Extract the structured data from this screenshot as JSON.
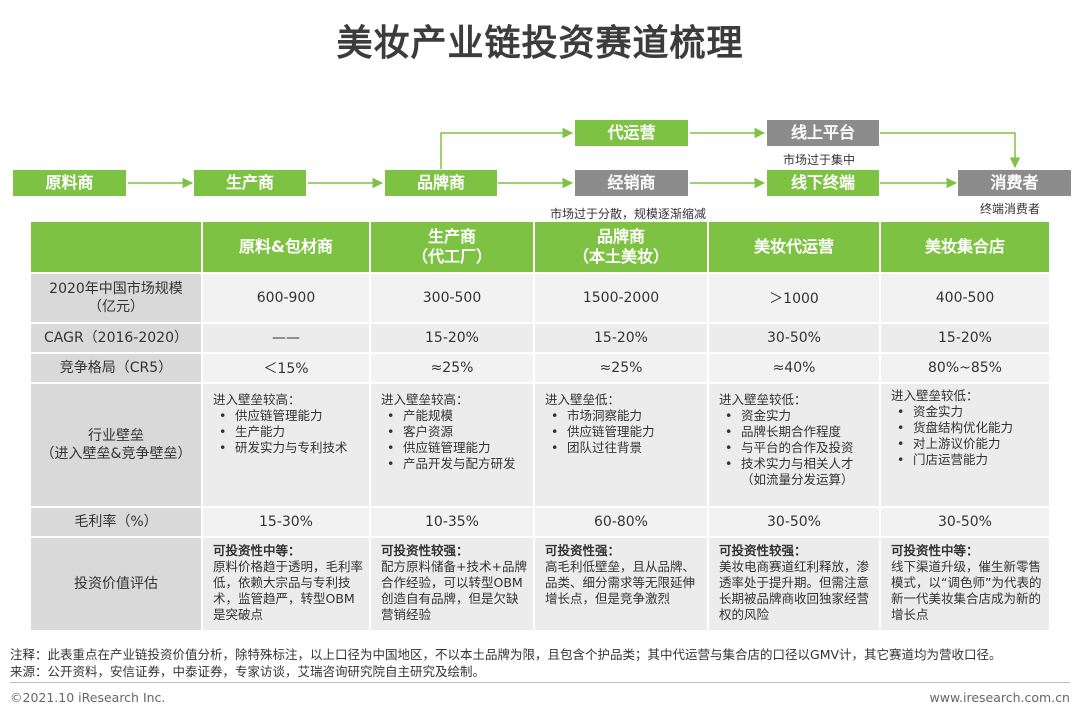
{
  "title": "美妆产业链投资赛道梳理",
  "flow": {
    "raw": "原料商",
    "manufacturer": "生产商",
    "brand": "品牌商",
    "operator": "代运营",
    "distributor": "经销商",
    "online": "线上平台",
    "offline": "线下终端",
    "consumer": "消费者",
    "online_note": "市场过于集中",
    "distributor_note": "市场过于分散，规模逐渐缩减",
    "consumer_note": "终端消费者"
  },
  "table": {
    "headers": [
      "原料&包材商",
      "生产商\n（代工厂）",
      "品牌商\n（本土美妆）",
      "美妆代运营",
      "美妆集合店"
    ],
    "market_label": "2020年中国市场规模\n（亿元）",
    "market": [
      "600-900",
      "300-500",
      "1500-2000",
      "＞1000",
      "400-500"
    ],
    "cagr_label": "CAGR（2016-2020）",
    "cagr": [
      "——",
      "15-20%",
      "15-20%",
      "30-50%",
      "15-20%"
    ],
    "cr5_label": "竞争格局（CR5）",
    "cr5": [
      "＜15%",
      "≈25%",
      "≈25%",
      "≈40%",
      "80%~85%"
    ],
    "barrier_label": "行业壁垒\n（进入壁垒&竞争壁垒）",
    "barriers": [
      {
        "head": "进入壁垒较高：",
        "items": [
          "供应链管理能力",
          "生产能力",
          "研发实力与专利技术"
        ]
      },
      {
        "head": "进入壁垒较高：",
        "items": [
          "产能规模",
          "客户资源",
          "供应链管理能力",
          "产品开发与配方研发"
        ]
      },
      {
        "head": "进入壁垒低：",
        "items": [
          "市场洞察能力",
          "供应链管理能力",
          "团队过往背景"
        ]
      },
      {
        "head": "进入壁垒较低：",
        "items": [
          "资金实力",
          "品牌长期合作程度",
          "与平台的合作及投资",
          "技术实力与相关人才（如流量分发运算）"
        ]
      },
      {
        "head": "进入壁垒较低：",
        "items": [
          "资金实力",
          "货盘结构优化能力",
          "对上游议价能力",
          "门店运营能力"
        ]
      }
    ],
    "margin_label": "毛利率（%）",
    "margin": [
      "15-30%",
      "10-35%",
      "60-80%",
      "30-50%",
      "30-50%"
    ],
    "invest_label": "投资价值评估",
    "invest": [
      {
        "head": "可投资性中等：",
        "text": "原料价格趋于透明，毛利率低，依赖大宗品与专利技术，监管趋严，转型OBM是突破点"
      },
      {
        "head": "可投资性较强：",
        "text": "配方原料储备+技术+品牌合作经验，可以转型OBM创造自有品牌，但是欠缺营销经验"
      },
      {
        "head": "可投资性强：",
        "text": "高毛利低壁垒，且从品牌、品类、细分需求等无限延伸增长点，但是竞争激烈"
      },
      {
        "head": "可投资性较强：",
        "text": "美妆电商赛道红利释放，渗透率处于提升期。但需注意长期被品牌商收回独家经营权的风险"
      },
      {
        "head": "可投资性中等：",
        "text": "线下渠道升级，催生新零售模式，以“调色师”为代表的新一代美妆集合店成为新的增长点"
      }
    ]
  },
  "footnote1": "注释：此表重点在产业链投资价值分析，除特殊标注，以上口径为中国地区，不以本土品牌为限，且包含个护品类；其中代运营与集合店的口径以GMV计，其它赛道均为营收口径。",
  "footnote2": "来源：公开资料，安信证券，中泰证券，专家访谈，艾瑞咨询研究院自主研究及绘制。",
  "copyright": "©2021.10 iResearch Inc.",
  "website": "www.iresearch.com.cn",
  "colors": {
    "green": "#7dc242",
    "gray": "#8c8c8c",
    "arrow": "#7dc242"
  }
}
